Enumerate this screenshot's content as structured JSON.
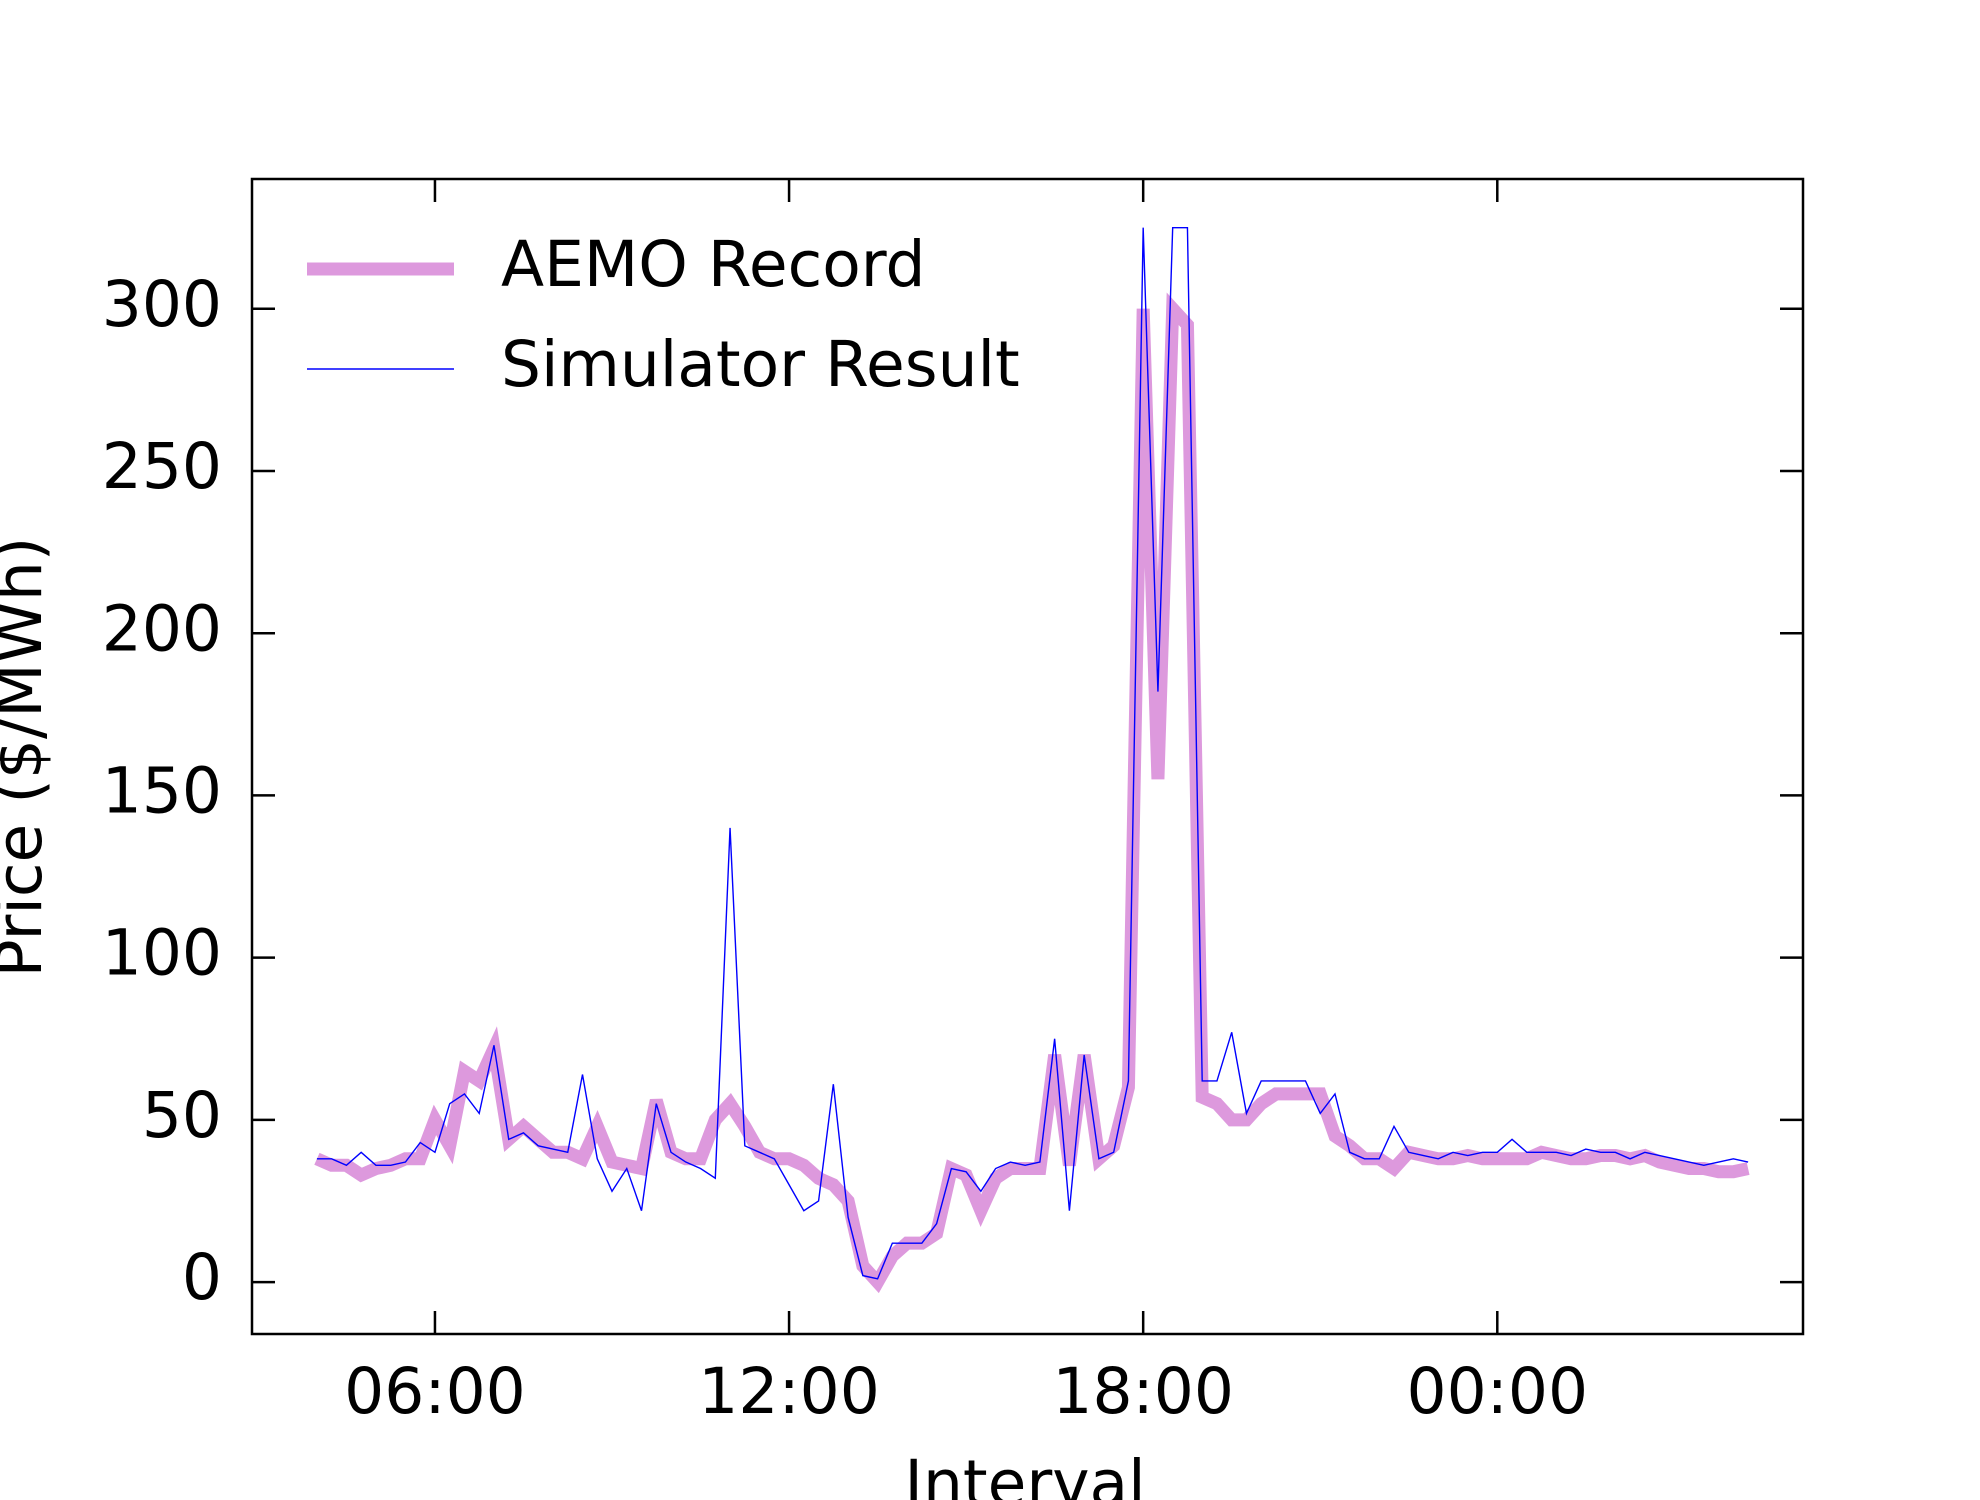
{
  "chart_data": {
    "type": "line",
    "xlabel": "Interval",
    "ylabel": "Price ($/MWh)",
    "x": [
      4,
      4.25,
      4.5,
      4.75,
      5,
      5.25,
      5.5,
      5.75,
      6,
      6.25,
      6.5,
      6.75,
      7,
      7.25,
      7.5,
      7.75,
      8,
      8.25,
      8.5,
      8.75,
      9,
      9.25,
      9.5,
      9.75,
      10,
      10.25,
      10.5,
      10.75,
      11,
      11.25,
      11.5,
      11.75,
      12,
      12.25,
      12.5,
      12.75,
      13,
      13.25,
      13.5,
      13.75,
      14,
      14.25,
      14.5,
      14.75,
      15,
      15.25,
      15.5,
      15.75,
      16,
      16.25,
      16.5,
      16.75,
      17,
      17.25,
      17.5,
      17.75,
      18,
      18.25,
      18.5,
      18.75,
      19,
      19.25,
      19.5,
      19.75,
      20,
      20.25,
      20.5,
      20.75,
      21,
      21.25,
      21.5,
      21.75,
      22,
      22.25,
      22.5,
      22.75,
      23,
      23.25,
      23.5,
      23.75,
      24,
      24.25,
      24.5,
      24.75,
      25,
      25.25,
      25.5,
      25.75,
      26,
      26.25,
      26.5,
      26.75,
      27,
      27.25,
      27.5,
      27.75,
      28,
      28.25
    ],
    "series": [
      {
        "name": "AEMO Record",
        "color": "#dd99dd",
        "width": 13,
        "values": [
          38,
          36,
          36,
          33,
          35,
          36,
          38,
          38,
          50,
          42,
          65,
          62,
          72,
          44,
          48,
          44,
          40,
          40,
          38,
          48,
          37,
          36,
          35,
          56,
          40,
          38,
          38,
          50,
          55,
          48,
          40,
          38,
          38,
          36,
          32,
          30,
          25,
          5,
          0,
          8,
          12,
          12,
          15,
          35,
          33,
          22,
          32,
          35,
          35,
          35,
          70,
          36,
          70,
          38,
          42,
          60,
          300,
          155,
          300,
          295,
          57,
          55,
          50,
          50,
          55,
          58,
          58,
          58,
          58,
          45,
          42,
          38,
          38,
          35,
          40,
          39,
          38,
          38,
          39,
          38,
          38,
          38,
          38,
          40,
          39,
          38,
          38,
          39,
          39,
          38,
          39,
          37,
          36,
          35,
          35,
          34,
          34,
          35
        ]
      },
      {
        "name": "Simulator Result",
        "color": "#0000ff",
        "width": 1.4,
        "values": [
          38,
          38,
          36,
          40,
          36,
          36,
          37,
          43,
          40,
          55,
          58,
          52,
          73,
          44,
          46,
          42,
          41,
          40,
          64,
          38,
          28,
          35,
          22,
          55,
          40,
          37,
          35,
          32,
          140,
          42,
          40,
          38,
          30,
          22,
          25,
          61,
          20,
          2,
          1,
          12,
          12,
          12,
          18,
          35,
          34,
          28,
          35,
          37,
          36,
          37,
          75,
          22,
          70,
          38,
          40,
          62,
          325,
          182,
          325,
          325,
          62,
          62,
          77,
          52,
          62,
          62,
          62,
          62,
          52,
          58,
          40,
          38,
          38,
          48,
          40,
          39,
          38,
          40,
          39,
          40,
          40,
          44,
          40,
          40,
          40,
          39,
          41,
          40,
          40,
          38,
          40,
          39,
          38,
          37,
          36,
          37,
          38,
          37
        ]
      }
    ],
    "xlim": [
      2.9,
      29.18
    ],
    "xticks": [
      {
        "value": 6,
        "label": "06:00"
      },
      {
        "value": 12,
        "label": "12:00"
      },
      {
        "value": 18,
        "label": "18:00"
      },
      {
        "value": 24,
        "label": "00:00"
      }
    ],
    "ylim": [
      -16,
      340
    ],
    "yticks": [
      0,
      50,
      100,
      150,
      200,
      250,
      300
    ],
    "grid": false,
    "legend": "upper left"
  }
}
